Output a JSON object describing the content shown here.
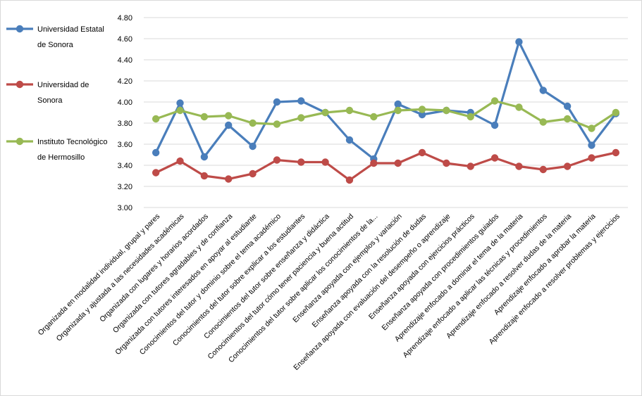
{
  "chart_data": {
    "type": "line",
    "title": "",
    "xlabel": "",
    "ylabel": "",
    "ylim": [
      3.0,
      4.8
    ],
    "y_ticks": [
      "3.00",
      "3.20",
      "3.40",
      "3.60",
      "3.80",
      "4.00",
      "4.20",
      "4.40",
      "4.60",
      "4.80"
    ],
    "grid": true,
    "legend_position": "left",
    "categories": [
      "Organizada en modalidad individual, grupal y pares",
      "Organizada y ajustada a las necesidades académicas",
      "Organizada con lugares y horarios acordados",
      "Organizada con tutores agradables y de confianza",
      "Organizada con tutores interesados en apoyar al estudiante",
      "Conocimientos del tutor y dominio sobre el tema académico",
      "Conocimientos del tutor sobre explicar a los estudiantes",
      "Conocimientos del tutor sobre enseñanza y didáctica",
      "Conocimientos del tutor cómo tener paciencia y buena actitud",
      "Conocimientos del tutor sobre aplicar los conocimientos de la...",
      "Enseñanza apoyada con ejemplos y variación",
      "Enseñanza apoyada con la resolución de dudas",
      "Enseñanza apoyada con evaluación del desempeño o aprendizaje",
      "Enseñanza apoyada con ejercicios prácticos",
      "Enseñanza apoyada con procedimientos guiados",
      "Aprendizaje enfocado a dominar el tema de la materia",
      "Aprendizaje enfocado a aplicar las técnicas y procedimientos",
      "Aprendizaje enfocado a resolver dudas de la materia",
      "Aprendizaje enfocado a aprobar la materia",
      "Aprendizaje enfocado a resolver problemas y ejercicios"
    ],
    "series": [
      {
        "name": "Universidad Estatal de Sonora",
        "legend_lines": [
          "Universidad Estatal",
          "de Sonora"
        ],
        "color": "#4a7ebb",
        "values": [
          3.52,
          3.99,
          3.48,
          3.78,
          3.58,
          4.0,
          4.01,
          3.9,
          3.64,
          3.46,
          3.98,
          3.88,
          3.92,
          3.9,
          3.78,
          4.57,
          4.11,
          3.96,
          3.59,
          3.89
        ]
      },
      {
        "name": "Universidad de Sonora",
        "legend_lines": [
          "Universidad de",
          "Sonora"
        ],
        "color": "#be4b48",
        "values": [
          3.33,
          3.44,
          3.3,
          3.27,
          3.32,
          3.45,
          3.43,
          3.43,
          3.26,
          3.42,
          3.42,
          3.52,
          3.42,
          3.39,
          3.47,
          3.39,
          3.36,
          3.39,
          3.47,
          3.52
        ]
      },
      {
        "name": "Instituto Tecnológico de Hermosillo",
        "legend_lines": [
          "Instituto Tecnológico",
          "de Hermosillo"
        ],
        "color": "#98b954",
        "values": [
          3.84,
          3.92,
          3.86,
          3.87,
          3.8,
          3.79,
          3.85,
          3.9,
          3.92,
          3.86,
          3.92,
          3.93,
          3.92,
          3.86,
          4.01,
          3.95,
          3.81,
          3.84,
          3.75,
          3.9
        ]
      }
    ]
  }
}
